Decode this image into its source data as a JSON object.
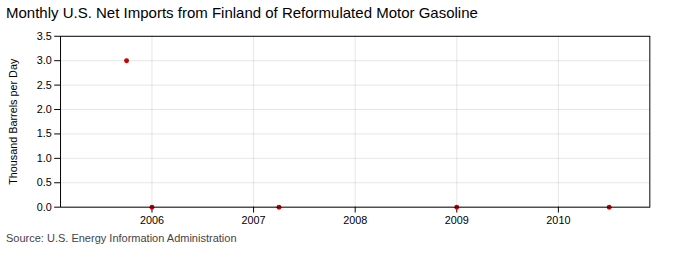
{
  "chart_data": {
    "type": "scatter",
    "title": "Monthly U.S. Net Imports from Finland of Reformulated Motor Gasoline",
    "ylabel": "Thousand Barrels per Day",
    "annotation": "Source: U.S. Energy Information Administration",
    "x": [
      2005.75,
      2006.0,
      2007.25,
      2009.0,
      2010.5
    ],
    "values": [
      3.0,
      0.0,
      0.0,
      0.0,
      0.0
    ],
    "color": "#cc0000",
    "xlim": [
      2005.1,
      2010.9
    ],
    "xticks": [
      2006,
      2007,
      2008,
      2009,
      2010
    ],
    "ylim": [
      0.0,
      3.5
    ],
    "yticks": [
      {
        "value": 0.0,
        "label": "0.0"
      },
      0.5,
      {
        "value": 1.0,
        "label": "1.0"
      },
      1.5,
      {
        "value": 2.0,
        "label": "2.0"
      },
      2.5,
      {
        "value": 3.0,
        "label": "3.0"
      },
      3.5
    ],
    "grid": true
  }
}
